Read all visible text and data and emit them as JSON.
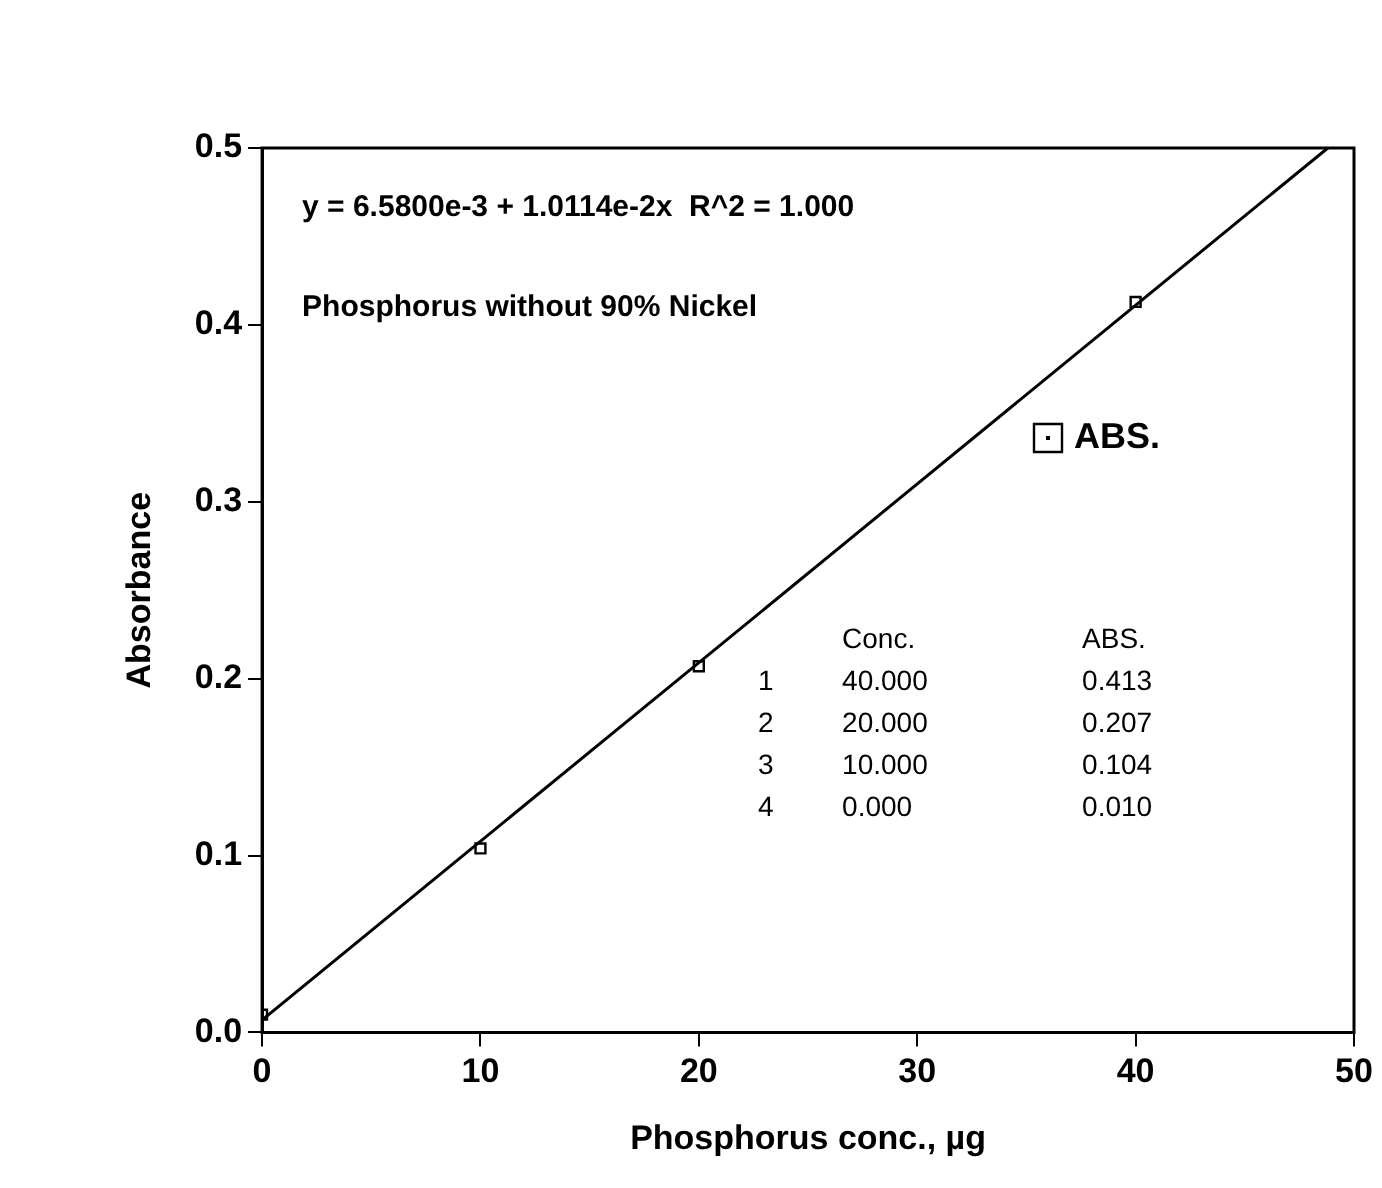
{
  "chart_data": {
    "type": "scatter",
    "xlabel": "Phosphorus conc., µg",
    "ylabel": "Absorbance",
    "annotations": [
      "y = 6.5800e-3 + 1.0114e-2x  R^2 = 1.000",
      "Phosphorus without 90% Nickel",
      "Conc.",
      "ABS.",
      "1",
      "40.000",
      "0.413",
      "2",
      "20.000",
      "0.207",
      "3",
      "10.000",
      "0.104",
      "4",
      "0.000",
      "0.010"
    ],
    "series": [
      {
        "name": "ABS.",
        "color": "#000000",
        "x": [
          40,
          20,
          10,
          0
        ],
        "values": [
          0.413,
          0.207,
          0.104,
          0.01
        ],
        "marker": "square"
      },
      {
        "type": "line",
        "color": "#000000",
        "x": [
          0,
          48.8
        ],
        "values": [
          0.007,
          0.5
        ],
        "marker": "none",
        "line_style": "solid"
      }
    ],
    "xlim": [
      0,
      50
    ],
    "xticks": [
      0,
      10,
      20,
      30,
      40,
      50
    ],
    "ylim": [
      0,
      0.5
    ],
    "yticks": [
      {
        "value": 0,
        "label": "0.0"
      },
      {
        "value": 0.1,
        "label": "0.1"
      },
      {
        "value": 0.2,
        "label": "0.2"
      },
      {
        "value": 0.3,
        "label": "0.3"
      },
      {
        "value": 0.4,
        "label": "0.4"
      },
      {
        "value": 0.5,
        "label": "0.5"
      }
    ],
    "grid": false,
    "legend": "right"
  }
}
